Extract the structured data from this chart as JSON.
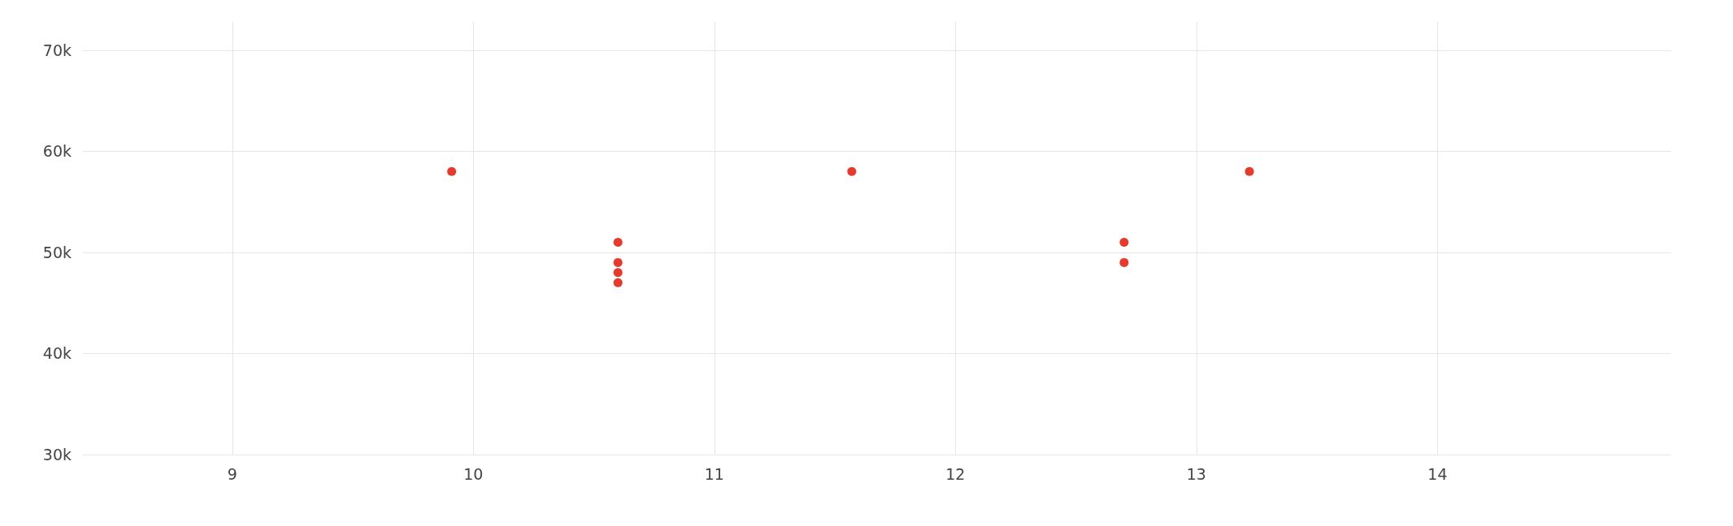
{
  "chart_data": {
    "type": "scatter",
    "x": [
      9.91,
      10.6,
      10.6,
      10.6,
      10.6,
      11.57,
      12.7,
      12.7,
      13.22
    ],
    "series": [
      {
        "color": "#e8392a",
        "values": [
          58000,
          51000,
          49000,
          48000,
          47000,
          58000,
          51000,
          49000,
          58000
        ]
      }
    ],
    "xlim": [
      8.38,
      14.97
    ],
    "xticks": [
      9,
      10,
      11,
      12,
      13,
      14
    ],
    "ylim": [
      30000,
      72800
    ],
    "yticks": [
      {
        "value": 30000,
        "label": "30k"
      },
      {
        "value": 40000,
        "label": "40k"
      },
      {
        "value": 50000,
        "label": "50k"
      },
      {
        "value": 60000,
        "label": "60k"
      },
      {
        "value": 70000,
        "label": "70k"
      }
    ],
    "grid": true,
    "marker": "circle"
  }
}
